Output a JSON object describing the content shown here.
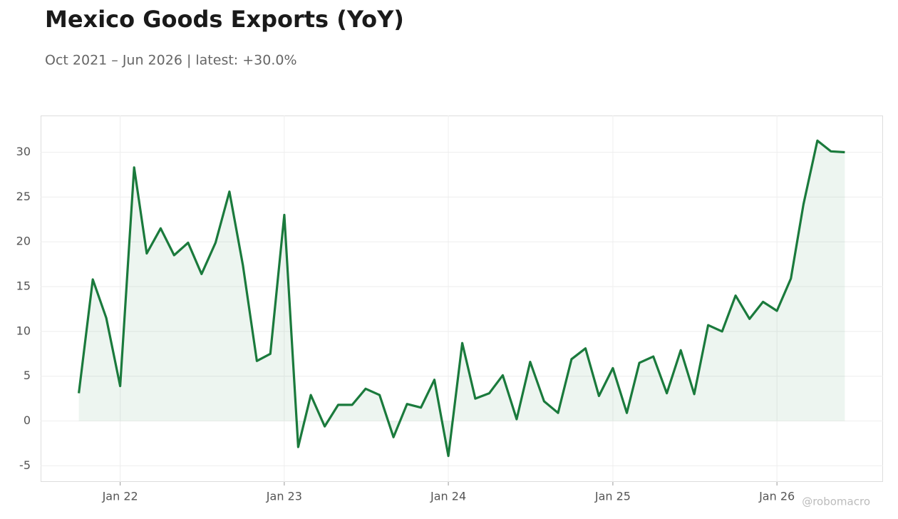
{
  "chart_data": {
    "type": "line",
    "title": "Mexico Goods Exports (YoY)",
    "subtitle": "Oct 2021 – Jun 2026 | latest: +30.0%",
    "watermark": "@robomacro",
    "x": [
      "2021-10",
      "2021-11",
      "2021-12",
      "2022-01",
      "2022-02",
      "2022-03",
      "2022-04",
      "2022-05",
      "2022-06",
      "2022-07",
      "2022-08",
      "2022-09",
      "2022-10",
      "2022-11",
      "2022-12",
      "2023-01",
      "2023-02",
      "2023-03",
      "2023-04",
      "2023-05",
      "2023-06",
      "2023-07",
      "2023-08",
      "2023-09",
      "2023-10",
      "2023-11",
      "2023-12",
      "2024-01",
      "2024-02",
      "2024-03",
      "2024-04",
      "2024-05",
      "2024-06",
      "2024-07",
      "2024-08",
      "2024-09",
      "2024-10",
      "2024-11",
      "2024-12",
      "2025-01",
      "2025-02",
      "2025-03",
      "2025-04",
      "2025-05",
      "2025-06",
      "2025-07",
      "2025-08",
      "2025-09",
      "2025-10",
      "2025-11",
      "2025-12",
      "2026-01",
      "2026-02",
      "2026-03",
      "2026-04",
      "2026-05",
      "2026-06"
    ],
    "series": [
      {
        "name": "Mexico Goods Exports (YoY)",
        "color": "#1a7a3c",
        "values": [
          3.1,
          15.8,
          11.5,
          3.9,
          28.3,
          18.7,
          21.5,
          18.5,
          19.9,
          16.4,
          19.9,
          25.6,
          17.4,
          6.7,
          7.5,
          23.0,
          -2.9,
          2.9,
          -0.6,
          1.8,
          1.8,
          3.6,
          2.9,
          -1.8,
          1.9,
          1.5,
          4.6,
          -3.9,
          8.7,
          2.5,
          3.1,
          5.1,
          0.2,
          6.6,
          2.2,
          0.9,
          6.9,
          8.1,
          2.8,
          5.9,
          0.9,
          6.5,
          7.2,
          3.1,
          7.9,
          3.0,
          10.7,
          10.0,
          14.0,
          11.4,
          13.3,
          12.3,
          15.9,
          24.2,
          31.3,
          30.1,
          30.0
        ]
      }
    ],
    "xlim": [
      "2021-07-08",
      "2026-08-25"
    ],
    "xticks": [
      {
        "value": "2022-01",
        "label": "Jan 22"
      },
      {
        "value": "2023-01",
        "label": "Jan 23"
      },
      {
        "value": "2024-01",
        "label": "Jan 24"
      },
      {
        "value": "2025-01",
        "label": "Jan 25"
      },
      {
        "value": "2026-01",
        "label": "Jan 26"
      }
    ],
    "ylim": [
      -6.8,
      34.1
    ],
    "yticks": [
      -5,
      0,
      5,
      10,
      15,
      20,
      25,
      30
    ],
    "grid": true,
    "fill": true
  }
}
